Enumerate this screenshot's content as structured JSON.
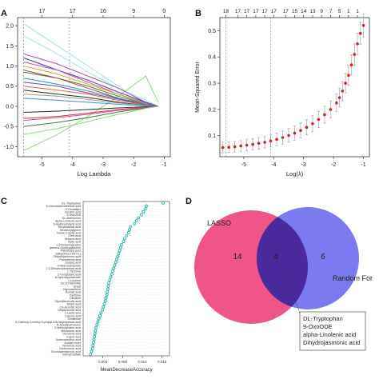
{
  "panels": {
    "a": {
      "letter": "A"
    },
    "b": {
      "letter": "B"
    },
    "c": {
      "letter": "C"
    },
    "d": {
      "letter": "D"
    }
  },
  "chart_data": [
    {
      "type": "line",
      "panel": "A",
      "xlabel": "Log Lambda",
      "ylabel": "",
      "xlim": [
        -5.8,
        -0.8
      ],
      "ylim": [
        -1.25,
        2.2
      ],
      "xticks": [
        -5,
        -4,
        -3,
        -2,
        -1
      ],
      "yticks": [
        -1.0,
        -0.5,
        0.0,
        0.5,
        1.0,
        1.5,
        2.0
      ],
      "top_axis": {
        "positions": [
          -5,
          -4,
          -3,
          -2,
          -1
        ],
        "labels": [
          "17",
          "17",
          "16",
          "9",
          "0"
        ]
      },
      "x": [
        -5.6,
        -4.5,
        -3.5,
        -2.5,
        -1.6,
        -1.2
      ],
      "series": [
        {
          "color": "#9ae6e2",
          "values": [
            2.05,
            1.5,
            1.0,
            0.5,
            0.05,
            0.0
          ]
        },
        {
          "color": "#8fd67a",
          "values": [
            -1.1,
            -0.7,
            -0.25,
            0.25,
            0.75,
            0.1
          ]
        },
        {
          "color": "#9ae6e2",
          "values": [
            1.75,
            1.3,
            0.85,
            0.45,
            0.15,
            0.0
          ]
        },
        {
          "color": "#b04fc4",
          "values": [
            1.3,
            1.05,
            0.75,
            0.45,
            0.1,
            0.0
          ]
        },
        {
          "color": "#2c3fb8",
          "values": [
            1.2,
            0.9,
            0.65,
            0.35,
            0.1,
            0.0
          ]
        },
        {
          "color": "#e04aa0",
          "values": [
            1.1,
            0.9,
            0.6,
            0.3,
            0.08,
            0.0
          ]
        },
        {
          "color": "#d9a21a",
          "values": [
            1.0,
            0.8,
            0.55,
            0.3,
            0.05,
            0.0
          ]
        },
        {
          "color": "#3a7d3a",
          "values": [
            0.9,
            0.7,
            0.5,
            0.25,
            0.05,
            0.0
          ]
        },
        {
          "color": "#c43a3a",
          "values": [
            0.85,
            0.7,
            0.45,
            0.2,
            0.05,
            0.0
          ]
        },
        {
          "color": "#1aa1a1",
          "values": [
            0.7,
            0.55,
            0.38,
            0.2,
            0.05,
            0.0
          ]
        },
        {
          "color": "#6e3ec9",
          "values": [
            0.6,
            0.5,
            0.33,
            0.18,
            0.03,
            0.0
          ]
        },
        {
          "color": "#e06b28",
          "values": [
            0.5,
            0.4,
            0.3,
            0.15,
            0.03,
            0.0
          ]
        },
        {
          "color": "#2a2a2a",
          "values": [
            0.4,
            0.3,
            0.22,
            0.1,
            0.02,
            0.0
          ]
        },
        {
          "color": "#999999",
          "values": [
            0.3,
            0.25,
            0.17,
            0.08,
            0.02,
            0.0
          ]
        },
        {
          "color": "#3a8de0",
          "values": [
            0.2,
            0.15,
            0.1,
            0.05,
            0.01,
            0.0
          ]
        },
        {
          "color": "#2a2a2a",
          "values": [
            -0.15,
            -0.12,
            -0.08,
            -0.04,
            -0.01,
            0.0
          ]
        },
        {
          "color": "#c43a3a",
          "values": [
            -0.3,
            -0.25,
            -0.17,
            -0.08,
            -0.02,
            0.0
          ]
        },
        {
          "color": "#e04aa0",
          "values": [
            -0.35,
            -0.28,
            -0.2,
            -0.1,
            -0.03,
            0.0
          ]
        },
        {
          "color": "#3a7d3a",
          "values": [
            -0.5,
            -0.4,
            -0.28,
            -0.14,
            -0.04,
            0.0
          ]
        },
        {
          "color": "#8fd67a",
          "values": [
            -0.7,
            -0.55,
            -0.38,
            -0.2,
            -0.05,
            0.0
          ]
        }
      ],
      "vlines": [
        -5.6,
        -4.1
      ]
    },
    {
      "type": "scatter",
      "panel": "B",
      "xlabel": "Log(λ)",
      "ylabel": "Mean-Squared Error",
      "xlim": [
        -5.8,
        -0.8
      ],
      "ylim": [
        0.02,
        0.55
      ],
      "xticks": [
        -5,
        -4,
        -3,
        -2,
        -1
      ],
      "yticks": [
        0.1,
        0.2,
        0.3,
        0.4,
        0.5
      ],
      "top_axis": {
        "positions": [
          -5.6,
          -5.2,
          -4.9,
          -4.6,
          -4.3,
          -4.0,
          -3.6,
          -3.3,
          -3.0,
          -2.7,
          -2.4,
          -2.1,
          -1.8,
          -1.5,
          -1.2
        ],
        "labels": [
          "18",
          "17",
          "17",
          "17",
          "17",
          "17",
          "17",
          "15",
          "14",
          "13",
          "9",
          "7",
          "5",
          "1",
          "1"
        ]
      },
      "x": [
        -5.7,
        -5.5,
        -5.3,
        -5.1,
        -4.9,
        -4.7,
        -4.5,
        -4.3,
        -4.1,
        -3.9,
        -3.7,
        -3.5,
        -3.3,
        -3.1,
        -2.9,
        -2.7,
        -2.5,
        -2.3,
        -2.1,
        -1.9,
        -1.8,
        -1.7,
        -1.6,
        -1.5,
        -1.4,
        -1.3,
        -1.2,
        -1.1,
        -1.0
      ],
      "values": [
        0.055,
        0.056,
        0.058,
        0.061,
        0.064,
        0.067,
        0.071,
        0.075,
        0.08,
        0.086,
        0.093,
        0.101,
        0.11,
        0.12,
        0.132,
        0.146,
        0.162,
        0.18,
        0.2,
        0.225,
        0.245,
        0.27,
        0.3,
        0.33,
        0.37,
        0.41,
        0.45,
        0.49,
        0.52
      ],
      "errors": [
        0.02,
        0.02,
        0.02,
        0.02,
        0.021,
        0.021,
        0.022,
        0.022,
        0.023,
        0.024,
        0.025,
        0.026,
        0.027,
        0.028,
        0.029,
        0.03,
        0.031,
        0.032,
        0.033,
        0.034,
        0.035,
        0.036,
        0.037,
        0.038,
        0.039,
        0.04,
        0.041,
        0.042,
        0.043
      ],
      "vlines": [
        -5.6,
        -4.1
      ]
    },
    {
      "type": "scatter",
      "panel": "C",
      "xlabel": "MeanDecreaseAccuracy",
      "xticks": [
        0.004,
        0.008,
        0.012,
        0.016
      ],
      "xlim": [
        0.0,
        0.0175
      ],
      "categories": [
        "DL-Tryptophan",
        "9-Oxooctadecadienoic acid",
        "3-Oxoadipic",
        "Isocitric acid",
        "9-OxoODE",
        "DL-Methionine",
        "alpha-Linolenic acid",
        "3-Hydroxybutyric acid",
        "Ethylmalonic acid",
        "Hexanoylglycine",
        "Indole-3-lactic acid",
        "Oleic acid",
        "Sebacic acid",
        "Malic acid",
        "1,5-Anhydroglucitol",
        "gamma-Glutamylalanine",
        "Palmitoleic acid",
        "SpingOA(12:0/14:1)",
        "Dihydrojasmonic acid",
        "Pantothenic acid",
        "Glutaric acid",
        "3-Hydroxybutyrate",
        "2,3-Dihydroxybutanoic acid",
        "L-Tyrosine",
        "2-Oxoglutaric acid",
        "8-Hydroxyoctanoate",
        "L-Leucine",
        "12(13)-DiHOME",
        "Uracil",
        "Hypoxanthine",
        "Azelaic acid",
        "Xanthine",
        "Citrulline",
        "Glycolithocholic acid",
        "Adipic acid",
        "Cis-Aconitic acid",
        "Dihydroorotic acid",
        "L-Lactic acid",
        "Caproic acid",
        "Creatinine",
        "8-Carboxy-4-methyl-5-propyl-2-furanpropanoic acid",
        "N-Acetylputrescine",
        "3-Methylglutaric acid",
        "Mesaconic acid",
        "Decanoic acid",
        "Capric acid",
        "Undecanedioic acid",
        "Azelaic ester",
        "Nonanoic acid",
        "Dodecanoic acid",
        "Docosapentaenoic acid",
        "Indoxyl sulfate"
      ],
      "values": [
        0.0162,
        0.0128,
        0.0126,
        0.0122,
        0.0118,
        0.0112,
        0.0108,
        0.0104,
        0.0096,
        0.0094,
        0.0092,
        0.0088,
        0.0084,
        0.0082,
        0.0078,
        0.0076,
        0.0074,
        0.0072,
        0.007,
        0.0068,
        0.0066,
        0.0064,
        0.0062,
        0.006,
        0.0058,
        0.0056,
        0.0054,
        0.0052,
        0.0051,
        0.005,
        0.0049,
        0.0048,
        0.0046,
        0.0045,
        0.0043,
        0.0041,
        0.0039,
        0.0036,
        0.0034,
        0.0032,
        0.003,
        0.0028,
        0.0026,
        0.0025,
        0.0024,
        0.0023,
        0.0022,
        0.0021,
        0.002,
        0.0019,
        0.0017,
        0.0015
      ]
    }
  ],
  "venn": {
    "left_label": "LASSO",
    "right_label": "Random For",
    "left_only": "14",
    "overlap": "4",
    "right_only": "6",
    "left_color": "#ef5588",
    "right_color": "#6d6cf0",
    "overlap_color": "#4a2a9c",
    "callout": [
      "DL-Tryptophan",
      "9-OxoODE",
      "alpha-Linolenic acid",
      "Dihydrojasmonic acid"
    ]
  }
}
